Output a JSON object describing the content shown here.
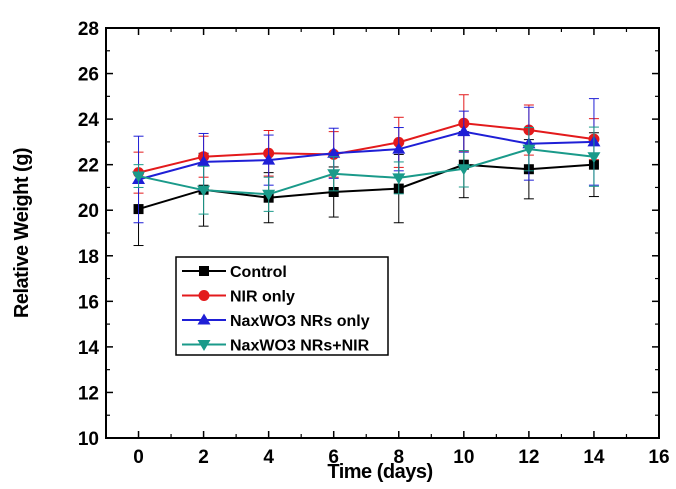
{
  "chart_data": {
    "type": "line",
    "title": "",
    "xlabel": "Time (days)",
    "ylabel": "Relative Weight (g)",
    "xlim": [
      -1,
      16
    ],
    "ylim": [
      10,
      28
    ],
    "xticks": [
      0,
      2,
      4,
      6,
      8,
      10,
      12,
      14,
      16
    ],
    "yticks": [
      10,
      12,
      14,
      16,
      18,
      20,
      22,
      24,
      26,
      28
    ],
    "x": [
      0,
      2,
      4,
      6,
      8,
      10,
      12,
      14
    ],
    "legend_position": "lower-left",
    "grid": false,
    "series": [
      {
        "name": "Control",
        "color": "#000000",
        "marker": "square",
        "values": [
          20.05,
          20.9,
          20.55,
          20.8,
          20.95,
          22.0,
          21.8,
          22.0
        ],
        "errors": [
          1.6,
          1.6,
          1.1,
          1.1,
          1.5,
          1.45,
          1.3,
          1.4
        ]
      },
      {
        "name": "NIR only",
        "color": "#e31a1c",
        "marker": "circle",
        "values": [
          21.65,
          22.35,
          22.5,
          22.45,
          22.98,
          23.82,
          23.52,
          23.12
        ],
        "errors": [
          0.9,
          0.9,
          1.0,
          1.0,
          1.1,
          1.25,
          1.1,
          0.9
        ]
      },
      {
        "name": "NaxWO3 NRs only",
        "color": "#1f1fd6",
        "marker": "triangle-up",
        "values": [
          21.35,
          22.12,
          22.2,
          22.5,
          22.68,
          23.45,
          22.92,
          23.0
        ],
        "errors": [
          1.9,
          1.25,
          1.1,
          1.1,
          0.95,
          0.9,
          1.6,
          1.9
        ]
      },
      {
        "name": "NaxWO3 NRs+NIR",
        "color": "#1a9a8a",
        "marker": "triangle-down",
        "values": [
          21.5,
          20.88,
          20.7,
          21.6,
          21.42,
          21.82,
          22.68,
          22.35
        ],
        "errors": [
          0.5,
          1.05,
          0.75,
          0.75,
          0.7,
          0.8,
          0.95,
          1.3
        ]
      }
    ]
  }
}
